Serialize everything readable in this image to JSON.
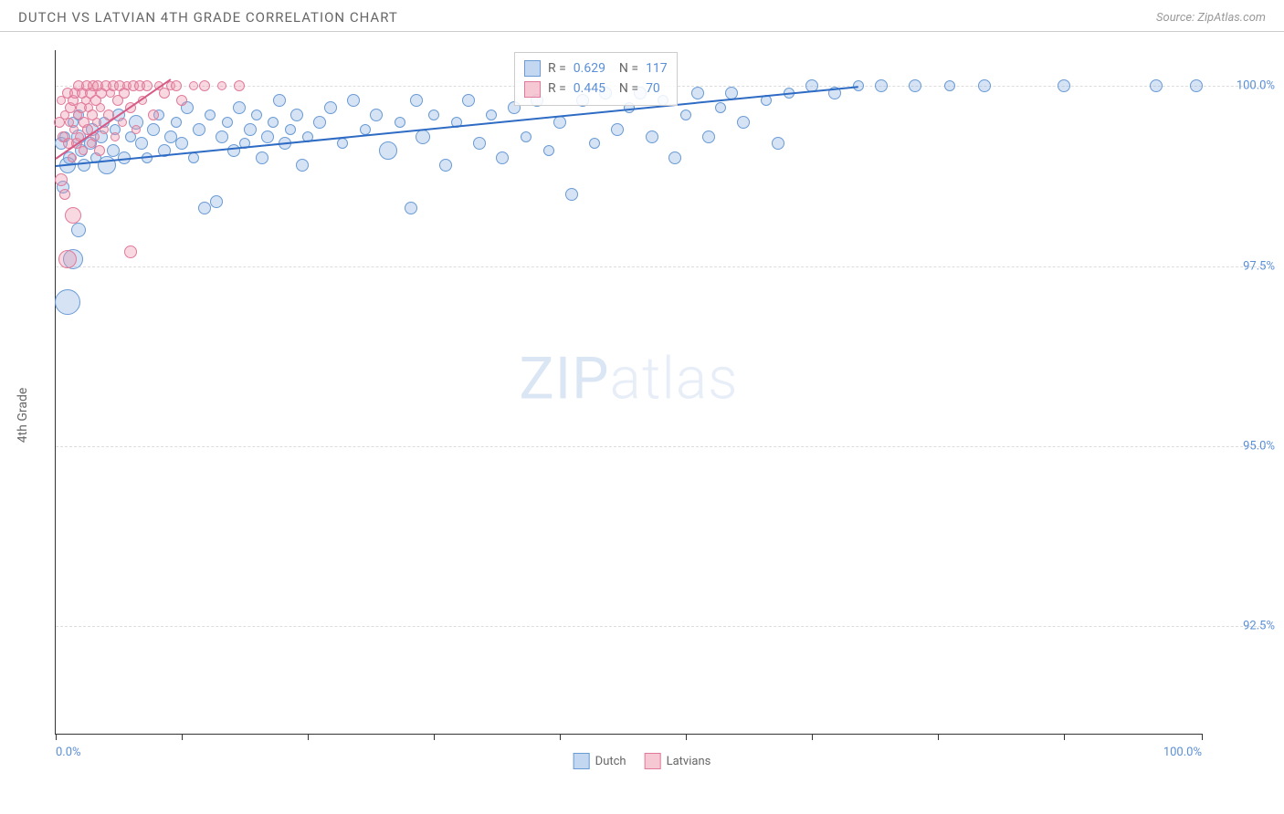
{
  "header": {
    "title": "DUTCH VS LATVIAN 4TH GRADE CORRELATION CHART",
    "source": "Source: ZipAtlas.com"
  },
  "chart": {
    "type": "scatter",
    "background_color": "#ffffff",
    "grid_color": "#dddddd",
    "axis_color": "#333333",
    "label_color": "#666666",
    "tick_label_color": "#5b8fd6",
    "y_axis_label": "4th Grade",
    "xlim": [
      0,
      100
    ],
    "ylim": [
      91,
      100.5
    ],
    "x_ticks": [
      0,
      11,
      22,
      33,
      44,
      55,
      66,
      77,
      88,
      100
    ],
    "x_tick_labels": {
      "0": "0.0%",
      "100": "100.0%"
    },
    "y_ticks": [
      92.5,
      95.0,
      97.5,
      100.0
    ],
    "y_tick_labels": [
      "92.5%",
      "95.0%",
      "97.5%",
      "100.0%"
    ],
    "watermark": "ZIPatlas",
    "series": [
      {
        "name": "Dutch",
        "color_fill": "rgba(135,176,226,0.35)",
        "color_stroke": "#6a9bd4",
        "trend_color": "#2e6bc4",
        "R": "0.629",
        "N": "117",
        "trend": {
          "x1": 0,
          "y1": 98.9,
          "x2": 70,
          "y2": 100.0
        },
        "points": [
          {
            "x": 0.5,
            "y": 99.2,
            "r": 7
          },
          {
            "x": 0.8,
            "y": 99.3,
            "r": 6
          },
          {
            "x": 1.0,
            "y": 98.9,
            "r": 9
          },
          {
            "x": 0.6,
            "y": 98.6,
            "r": 7
          },
          {
            "x": 1.2,
            "y": 99.0,
            "r": 7
          },
          {
            "x": 1.5,
            "y": 99.5,
            "r": 6
          },
          {
            "x": 2.0,
            "y": 99.3,
            "r": 8
          },
          {
            "x": 2.2,
            "y": 99.1,
            "r": 7
          },
          {
            "x": 2.5,
            "y": 98.9,
            "r": 7
          },
          {
            "x": 2.0,
            "y": 99.6,
            "r": 6
          },
          {
            "x": 3.0,
            "y": 99.2,
            "r": 7
          },
          {
            "x": 3.2,
            "y": 99.4,
            "r": 7
          },
          {
            "x": 3.5,
            "y": 99.0,
            "r": 6
          },
          {
            "x": 4.0,
            "y": 99.3,
            "r": 7
          },
          {
            "x": 4.2,
            "y": 99.5,
            "r": 6
          },
          {
            "x": 4.5,
            "y": 98.9,
            "r": 10
          },
          {
            "x": 5.0,
            "y": 99.1,
            "r": 7
          },
          {
            "x": 5.2,
            "y": 99.4,
            "r": 6
          },
          {
            "x": 5.5,
            "y": 99.6,
            "r": 7
          },
          {
            "x": 6.0,
            "y": 99.0,
            "r": 7
          },
          {
            "x": 6.5,
            "y": 99.3,
            "r": 6
          },
          {
            "x": 7.0,
            "y": 99.5,
            "r": 8
          },
          {
            "x": 7.5,
            "y": 99.2,
            "r": 7
          },
          {
            "x": 8.0,
            "y": 99.0,
            "r": 6
          },
          {
            "x": 8.5,
            "y": 99.4,
            "r": 7
          },
          {
            "x": 9.0,
            "y": 99.6,
            "r": 6
          },
          {
            "x": 9.5,
            "y": 99.1,
            "r": 7
          },
          {
            "x": 10.0,
            "y": 99.3,
            "r": 7
          },
          {
            "x": 10.5,
            "y": 99.5,
            "r": 6
          },
          {
            "x": 11.0,
            "y": 99.2,
            "r": 7
          },
          {
            "x": 11.5,
            "y": 99.7,
            "r": 7
          },
          {
            "x": 12.0,
            "y": 99.0,
            "r": 6
          },
          {
            "x": 12.5,
            "y": 99.4,
            "r": 7
          },
          {
            "x": 13.0,
            "y": 98.3,
            "r": 7
          },
          {
            "x": 13.5,
            "y": 99.6,
            "r": 6
          },
          {
            "x": 14.0,
            "y": 98.4,
            "r": 7
          },
          {
            "x": 14.5,
            "y": 99.3,
            "r": 7
          },
          {
            "x": 15.0,
            "y": 99.5,
            "r": 6
          },
          {
            "x": 15.5,
            "y": 99.1,
            "r": 7
          },
          {
            "x": 16.0,
            "y": 99.7,
            "r": 7
          },
          {
            "x": 16.5,
            "y": 99.2,
            "r": 6
          },
          {
            "x": 17.0,
            "y": 99.4,
            "r": 7
          },
          {
            "x": 17.5,
            "y": 99.6,
            "r": 6
          },
          {
            "x": 18.0,
            "y": 99.0,
            "r": 7
          },
          {
            "x": 18.5,
            "y": 99.3,
            "r": 7
          },
          {
            "x": 19.0,
            "y": 99.5,
            "r": 6
          },
          {
            "x": 19.5,
            "y": 99.8,
            "r": 7
          },
          {
            "x": 20.0,
            "y": 99.2,
            "r": 7
          },
          {
            "x": 20.5,
            "y": 99.4,
            "r": 6
          },
          {
            "x": 21.0,
            "y": 99.6,
            "r": 7
          },
          {
            "x": 21.5,
            "y": 98.9,
            "r": 7
          },
          {
            "x": 22.0,
            "y": 99.3,
            "r": 6
          },
          {
            "x": 23.0,
            "y": 99.5,
            "r": 7
          },
          {
            "x": 24.0,
            "y": 99.7,
            "r": 7
          },
          {
            "x": 25.0,
            "y": 99.2,
            "r": 6
          },
          {
            "x": 26.0,
            "y": 99.8,
            "r": 7
          },
          {
            "x": 27.0,
            "y": 99.4,
            "r": 6
          },
          {
            "x": 28.0,
            "y": 99.6,
            "r": 7
          },
          {
            "x": 29.0,
            "y": 99.1,
            "r": 10
          },
          {
            "x": 30.0,
            "y": 99.5,
            "r": 6
          },
          {
            "x": 31.0,
            "y": 98.3,
            "r": 7
          },
          {
            "x": 31.5,
            "y": 99.8,
            "r": 7
          },
          {
            "x": 32.0,
            "y": 99.3,
            "r": 8
          },
          {
            "x": 33.0,
            "y": 99.6,
            "r": 6
          },
          {
            "x": 34.0,
            "y": 98.9,
            "r": 7
          },
          {
            "x": 35.0,
            "y": 99.5,
            "r": 6
          },
          {
            "x": 36.0,
            "y": 99.8,
            "r": 7
          },
          {
            "x": 37.0,
            "y": 99.2,
            "r": 7
          },
          {
            "x": 38.0,
            "y": 99.6,
            "r": 6
          },
          {
            "x": 39.0,
            "y": 99.0,
            "r": 7
          },
          {
            "x": 40.0,
            "y": 99.7,
            "r": 7
          },
          {
            "x": 41.0,
            "y": 99.3,
            "r": 6
          },
          {
            "x": 42.0,
            "y": 99.8,
            "r": 7
          },
          {
            "x": 43.0,
            "y": 99.1,
            "r": 6
          },
          {
            "x": 44.0,
            "y": 99.5,
            "r": 7
          },
          {
            "x": 45.0,
            "y": 98.5,
            "r": 7
          },
          {
            "x": 46.0,
            "y": 99.8,
            "r": 7
          },
          {
            "x": 47.0,
            "y": 99.2,
            "r": 6
          },
          {
            "x": 48.0,
            "y": 99.9,
            "r": 7
          },
          {
            "x": 49.0,
            "y": 99.4,
            "r": 7
          },
          {
            "x": 50.0,
            "y": 99.7,
            "r": 6
          },
          {
            "x": 51.0,
            "y": 99.9,
            "r": 7
          },
          {
            "x": 52.0,
            "y": 99.3,
            "r": 7
          },
          {
            "x": 53.0,
            "y": 99.8,
            "r": 6
          },
          {
            "x": 54.0,
            "y": 99.0,
            "r": 7
          },
          {
            "x": 55.0,
            "y": 99.6,
            "r": 6
          },
          {
            "x": 56.0,
            "y": 99.9,
            "r": 7
          },
          {
            "x": 57.0,
            "y": 99.3,
            "r": 7
          },
          {
            "x": 58.0,
            "y": 99.7,
            "r": 6
          },
          {
            "x": 59.0,
            "y": 99.9,
            "r": 7
          },
          {
            "x": 60.0,
            "y": 99.5,
            "r": 7
          },
          {
            "x": 62.0,
            "y": 99.8,
            "r": 6
          },
          {
            "x": 63.0,
            "y": 99.2,
            "r": 7
          },
          {
            "x": 64.0,
            "y": 99.9,
            "r": 6
          },
          {
            "x": 66.0,
            "y": 100.0,
            "r": 7
          },
          {
            "x": 68.0,
            "y": 99.9,
            "r": 7
          },
          {
            "x": 70.0,
            "y": 100.0,
            "r": 6
          },
          {
            "x": 72.0,
            "y": 100.0,
            "r": 7
          },
          {
            "x": 75.0,
            "y": 100.0,
            "r": 7
          },
          {
            "x": 78.0,
            "y": 100.0,
            "r": 6
          },
          {
            "x": 81.0,
            "y": 100.0,
            "r": 7
          },
          {
            "x": 88.0,
            "y": 100.0,
            "r": 7
          },
          {
            "x": 96.0,
            "y": 100.0,
            "r": 7
          },
          {
            "x": 99.5,
            "y": 100.0,
            "r": 7
          },
          {
            "x": 1.0,
            "y": 97.0,
            "r": 14
          },
          {
            "x": 1.5,
            "y": 97.6,
            "r": 11
          },
          {
            "x": 2.0,
            "y": 98.0,
            "r": 8
          }
        ]
      },
      {
        "name": "Latvians",
        "color_fill": "rgba(236,145,170,0.35)",
        "color_stroke": "#e17a9a",
        "trend_color": "#d65a85",
        "R": "0.445",
        "N": "70",
        "trend": {
          "x1": 0,
          "y1": 99.0,
          "x2": 10,
          "y2": 100.1
        },
        "points": [
          {
            "x": 0.3,
            "y": 99.5,
            "r": 6
          },
          {
            "x": 0.5,
            "y": 99.8,
            "r": 5
          },
          {
            "x": 0.6,
            "y": 99.3,
            "r": 6
          },
          {
            "x": 0.8,
            "y": 99.6,
            "r": 5
          },
          {
            "x": 1.0,
            "y": 99.9,
            "r": 6
          },
          {
            "x": 1.1,
            "y": 99.2,
            "r": 6
          },
          {
            "x": 1.2,
            "y": 99.5,
            "r": 5
          },
          {
            "x": 1.3,
            "y": 99.7,
            "r": 6
          },
          {
            "x": 1.4,
            "y": 99.0,
            "r": 5
          },
          {
            "x": 1.5,
            "y": 99.8,
            "r": 6
          },
          {
            "x": 1.6,
            "y": 99.4,
            "r": 5
          },
          {
            "x": 1.7,
            "y": 99.9,
            "r": 6
          },
          {
            "x": 1.8,
            "y": 99.2,
            "r": 6
          },
          {
            "x": 1.9,
            "y": 99.6,
            "r": 5
          },
          {
            "x": 2.0,
            "y": 100.0,
            "r": 6
          },
          {
            "x": 2.1,
            "y": 99.3,
            "r": 5
          },
          {
            "x": 2.2,
            "y": 99.7,
            "r": 6
          },
          {
            "x": 2.3,
            "y": 99.9,
            "r": 6
          },
          {
            "x": 2.4,
            "y": 99.1,
            "r": 5
          },
          {
            "x": 2.5,
            "y": 99.5,
            "r": 6
          },
          {
            "x": 2.6,
            "y": 99.8,
            "r": 5
          },
          {
            "x": 2.7,
            "y": 100.0,
            "r": 6
          },
          {
            "x": 2.8,
            "y": 99.4,
            "r": 6
          },
          {
            "x": 2.9,
            "y": 99.7,
            "r": 5
          },
          {
            "x": 3.0,
            "y": 99.9,
            "r": 6
          },
          {
            "x": 3.1,
            "y": 99.2,
            "r": 5
          },
          {
            "x": 3.2,
            "y": 99.6,
            "r": 6
          },
          {
            "x": 3.3,
            "y": 100.0,
            "r": 6
          },
          {
            "x": 3.4,
            "y": 99.3,
            "r": 5
          },
          {
            "x": 3.5,
            "y": 99.8,
            "r": 6
          },
          {
            "x": 3.6,
            "y": 99.5,
            "r": 5
          },
          {
            "x": 3.7,
            "y": 100.0,
            "r": 6
          },
          {
            "x": 3.8,
            "y": 99.1,
            "r": 6
          },
          {
            "x": 3.9,
            "y": 99.7,
            "r": 5
          },
          {
            "x": 4.0,
            "y": 99.9,
            "r": 6
          },
          {
            "x": 4.2,
            "y": 99.4,
            "r": 5
          },
          {
            "x": 4.4,
            "y": 100.0,
            "r": 6
          },
          {
            "x": 4.6,
            "y": 99.6,
            "r": 6
          },
          {
            "x": 4.8,
            "y": 99.9,
            "r": 5
          },
          {
            "x": 5.0,
            "y": 100.0,
            "r": 6
          },
          {
            "x": 5.2,
            "y": 99.3,
            "r": 5
          },
          {
            "x": 5.4,
            "y": 99.8,
            "r": 6
          },
          {
            "x": 5.6,
            "y": 100.0,
            "r": 6
          },
          {
            "x": 5.8,
            "y": 99.5,
            "r": 5
          },
          {
            "x": 6.0,
            "y": 99.9,
            "r": 6
          },
          {
            "x": 6.2,
            "y": 100.0,
            "r": 5
          },
          {
            "x": 6.5,
            "y": 99.7,
            "r": 6
          },
          {
            "x": 6.8,
            "y": 100.0,
            "r": 6
          },
          {
            "x": 7.0,
            "y": 99.4,
            "r": 5
          },
          {
            "x": 7.3,
            "y": 100.0,
            "r": 6
          },
          {
            "x": 7.6,
            "y": 99.8,
            "r": 5
          },
          {
            "x": 8.0,
            "y": 100.0,
            "r": 6
          },
          {
            "x": 8.5,
            "y": 99.6,
            "r": 6
          },
          {
            "x": 9.0,
            "y": 100.0,
            "r": 5
          },
          {
            "x": 9.5,
            "y": 99.9,
            "r": 6
          },
          {
            "x": 10.0,
            "y": 100.0,
            "r": 5
          },
          {
            "x": 10.5,
            "y": 100.0,
            "r": 6
          },
          {
            "x": 11.0,
            "y": 99.8,
            "r": 6
          },
          {
            "x": 12.0,
            "y": 100.0,
            "r": 5
          },
          {
            "x": 13.0,
            "y": 100.0,
            "r": 6
          },
          {
            "x": 14.5,
            "y": 100.0,
            "r": 5
          },
          {
            "x": 16.0,
            "y": 100.0,
            "r": 6
          },
          {
            "x": 0.5,
            "y": 98.7,
            "r": 7
          },
          {
            "x": 0.8,
            "y": 98.5,
            "r": 6
          },
          {
            "x": 1.5,
            "y": 98.2,
            "r": 9
          },
          {
            "x": 1.0,
            "y": 97.6,
            "r": 10
          },
          {
            "x": 6.5,
            "y": 97.7,
            "r": 7
          }
        ]
      }
    ],
    "legend": {
      "items": [
        "Dutch",
        "Latvians"
      ]
    }
  }
}
